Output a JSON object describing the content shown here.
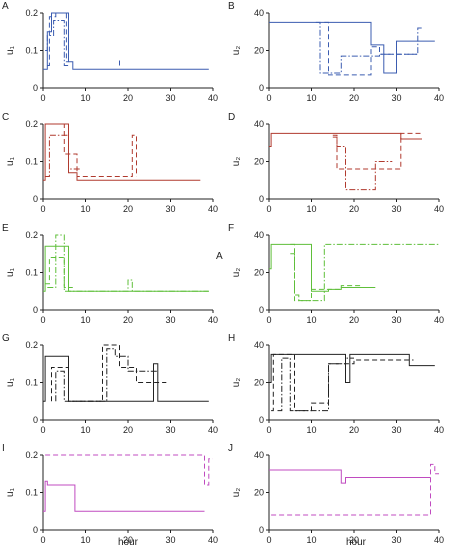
{
  "figure": {
    "x_axis_labels": [
      "hour",
      "hour"
    ],
    "stray_text": "A"
  },
  "styles": {
    "solid": "",
    "dashed": "5,3",
    "dashdot": "6,2,1.5,2"
  },
  "chart_data": [
    {
      "panel": "A",
      "type": "line",
      "color": "#3b5cb0",
      "ylabel": "u₁",
      "xlim": [
        0,
        40
      ],
      "ylim": [
        0,
        0.2
      ],
      "yticks": [
        "0",
        "0.1",
        "0.2"
      ],
      "xticks": [
        "0",
        "10",
        "20",
        "30",
        "40"
      ],
      "series": [
        {
          "style": "solid",
          "x": [
            0,
            1,
            1,
            2,
            2,
            6,
            6,
            7,
            7,
            39
          ],
          "y": [
            0.05,
            0.05,
            0.15,
            0.15,
            0.2,
            0.2,
            0.07,
            0.07,
            0.05,
            0.05
          ]
        },
        {
          "style": "dashed",
          "x": [
            1,
            1.5,
            1.5,
            3,
            3,
            5.5,
            5.5,
            6
          ],
          "y": [
            0.06,
            0.06,
            0.19,
            0.19,
            0.2,
            0.2,
            0.07,
            0.07
          ]
        },
        {
          "style": "dashdot",
          "x": [
            0.5,
            1,
            1,
            2.5,
            2.5,
            5,
            5,
            6
          ],
          "y": [
            0.1,
            0.1,
            0.14,
            0.14,
            0.18,
            0.18,
            0.06,
            0.06
          ]
        },
        {
          "style": "dashed",
          "x": [
            18,
            18
          ],
          "y": [
            0.06,
            0.08
          ]
        }
      ]
    },
    {
      "panel": "B",
      "type": "line",
      "color": "#3b5cb0",
      "ylabel": "u₂",
      "xlim": [
        0,
        40
      ],
      "ylim": [
        0,
        40
      ],
      "yticks": [
        "0",
        "20",
        "40"
      ],
      "xticks": [
        "0",
        "10",
        "20",
        "30",
        "40"
      ],
      "series": [
        {
          "style": "solid",
          "x": [
            0,
            24,
            24,
            27,
            27,
            30,
            30,
            39
          ],
          "y": [
            35,
            35,
            23,
            23,
            8,
            8,
            25,
            25
          ]
        },
        {
          "style": "dashed",
          "x": [
            13,
            13,
            14,
            14,
            24,
            24,
            26,
            26,
            35
          ],
          "y": [
            35,
            35,
            35,
            7,
            7,
            22,
            22,
            18,
            18
          ]
        },
        {
          "style": "dashdot",
          "x": [
            11,
            11,
            12,
            12,
            17,
            17,
            26,
            26,
            35,
            35,
            36
          ],
          "y": [
            35,
            35,
            35,
            8,
            8,
            17,
            17,
            18,
            18,
            32,
            32
          ]
        }
      ]
    },
    {
      "panel": "C",
      "type": "line",
      "color": "#b03a2e",
      "ylabel": "u₁",
      "xlim": [
        0,
        40
      ],
      "ylim": [
        0,
        0.2
      ],
      "yticks": [
        "0",
        "0.1",
        "0.2"
      ],
      "xticks": [
        "0",
        "10",
        "20",
        "30",
        "40"
      ],
      "series": [
        {
          "style": "solid",
          "x": [
            0,
            0.5,
            0.5,
            6,
            6,
            8,
            8,
            37
          ],
          "y": [
            0.05,
            0.05,
            0.2,
            0.2,
            0.07,
            0.07,
            0.05,
            0.05
          ]
        },
        {
          "style": "dashed",
          "x": [
            1,
            5,
            5,
            8,
            8,
            21,
            21,
            22,
            22
          ],
          "y": [
            0.2,
            0.2,
            0.12,
            0.12,
            0.06,
            0.06,
            0.17,
            0.17,
            0.06
          ]
        },
        {
          "style": "dashdot",
          "x": [
            0.5,
            1.5,
            1.5,
            6,
            6,
            9
          ],
          "y": [
            0.06,
            0.06,
            0.17,
            0.17,
            0.08,
            0.08
          ]
        }
      ]
    },
    {
      "panel": "D",
      "type": "line",
      "color": "#b03a2e",
      "ylabel": "u₂",
      "xlim": [
        0,
        40
      ],
      "ylim": [
        0,
        40
      ],
      "yticks": [
        "0",
        "20",
        "40"
      ],
      "xticks": [
        "0",
        "10",
        "20",
        "30",
        "40"
      ],
      "series": [
        {
          "style": "solid",
          "x": [
            0,
            0.5,
            0.5,
            31,
            31,
            36
          ],
          "y": [
            28,
            28,
            35,
            35,
            32,
            32
          ]
        },
        {
          "style": "dashed",
          "x": [
            15,
            15,
            16,
            16,
            31,
            31,
            36
          ],
          "y": [
            34,
            34,
            34,
            16,
            16,
            35,
            35
          ]
        },
        {
          "style": "dashdot",
          "x": [
            15,
            15,
            16,
            16,
            18,
            18,
            25,
            25,
            29
          ],
          "y": [
            33,
            33,
            33,
            28,
            28,
            5,
            5,
            20,
            20
          ]
        }
      ]
    },
    {
      "panel": "E",
      "type": "line",
      "color": "#5fbf3a",
      "ylabel": "u₁",
      "xlim": [
        0,
        40
      ],
      "ylim": [
        0,
        0.2
      ],
      "yticks": [
        "0",
        "0.1",
        "0.2"
      ],
      "xticks": [
        "0",
        "10",
        "20",
        "30",
        "40"
      ],
      "series": [
        {
          "style": "solid",
          "x": [
            0,
            0.5,
            0.5,
            6,
            6,
            39
          ],
          "y": [
            0.05,
            0.05,
            0.17,
            0.17,
            0.05,
            0.05
          ]
        },
        {
          "style": "dashed",
          "x": [
            0.5,
            1.5,
            1.5,
            5,
            5,
            7
          ],
          "y": [
            0.07,
            0.07,
            0.14,
            0.14,
            0.06,
            0.06
          ]
        },
        {
          "style": "dashdot",
          "x": [
            1,
            3,
            3,
            5,
            5,
            20,
            20,
            21,
            21,
            39
          ],
          "y": [
            0.06,
            0.06,
            0.2,
            0.2,
            0.05,
            0.05,
            0.08,
            0.08,
            0.05,
            0.05
          ]
        }
      ]
    },
    {
      "panel": "F",
      "type": "line",
      "color": "#5fbf3a",
      "ylabel": "u₂",
      "xlim": [
        0,
        40
      ],
      "ylim": [
        0,
        40
      ],
      "yticks": [
        "0",
        "20",
        "40"
      ],
      "xticks": [
        "0",
        "10",
        "20",
        "30",
        "40"
      ],
      "series": [
        {
          "style": "solid",
          "x": [
            0,
            0.5,
            0.5,
            10,
            10,
            14,
            14,
            17,
            17,
            25
          ],
          "y": [
            22,
            22,
            35,
            35,
            10,
            10,
            11,
            11,
            12,
            12
          ]
        },
        {
          "style": "dashed",
          "x": [
            5,
            5,
            6,
            6,
            10,
            10,
            17,
            17,
            22
          ],
          "y": [
            35,
            35,
            35,
            5,
            5,
            11,
            11,
            13,
            13
          ]
        },
        {
          "style": "dashdot",
          "x": [
            5,
            6,
            6,
            7,
            7,
            13,
            13,
            40
          ],
          "y": [
            30,
            30,
            8,
            8,
            5,
            5,
            35,
            35
          ]
        }
      ]
    },
    {
      "panel": "G",
      "type": "line",
      "color": "#222222",
      "ylabel": "u₁",
      "xlim": [
        0,
        40
      ],
      "ylim": [
        0,
        0.2
      ],
      "yticks": [
        "0",
        "0.1",
        "0.2"
      ],
      "xticks": [
        "0",
        "10",
        "20",
        "30",
        "40"
      ],
      "series": [
        {
          "style": "solid",
          "x": [
            0,
            0.5,
            0.5,
            6,
            6,
            26,
            26,
            27,
            27,
            39
          ],
          "y": [
            0.05,
            0.05,
            0.17,
            0.17,
            0.05,
            0.05,
            0.15,
            0.15,
            0.05,
            0.05
          ]
        },
        {
          "style": "dashed",
          "x": [
            2,
            2,
            6,
            6,
            14,
            14,
            18,
            18,
            22,
            22,
            29
          ],
          "y": [
            0.05,
            0.14,
            0.14,
            0.05,
            0.05,
            0.2,
            0.2,
            0.14,
            0.14,
            0.1,
            0.1
          ]
        },
        {
          "style": "dashdot",
          "x": [
            3,
            3,
            5,
            5,
            15,
            15,
            17,
            17,
            20,
            20,
            27
          ],
          "y": [
            0.05,
            0.13,
            0.13,
            0.05,
            0.05,
            0.19,
            0.19,
            0.17,
            0.17,
            0.13,
            0.13
          ]
        }
      ]
    },
    {
      "panel": "H",
      "type": "line",
      "color": "#222222",
      "ylabel": "u₂",
      "xlim": [
        0,
        40
      ],
      "ylim": [
        0,
        40
      ],
      "yticks": [
        "0",
        "20",
        "40"
      ],
      "xticks": [
        "0",
        "10",
        "20",
        "30",
        "40"
      ],
      "series": [
        {
          "style": "solid",
          "x": [
            0,
            0.5,
            0.5,
            18,
            18,
            19,
            19,
            33,
            33,
            39
          ],
          "y": [
            20,
            20,
            35,
            35,
            20,
            20,
            35,
            35,
            29,
            29
          ]
        },
        {
          "style": "dashed",
          "x": [
            0.5,
            1,
            1,
            6,
            6,
            10,
            10,
            14,
            14,
            20,
            20,
            34
          ],
          "y": [
            5,
            5,
            35,
            35,
            5,
            5,
            9,
            9,
            30,
            30,
            32,
            32
          ]
        },
        {
          "style": "dashdot",
          "x": [
            2,
            3,
            3,
            5,
            5,
            14,
            14,
            18,
            18,
            20
          ],
          "y": [
            5,
            5,
            33,
            33,
            5,
            5,
            30,
            30,
            33,
            33
          ]
        }
      ]
    },
    {
      "panel": "I",
      "type": "line",
      "color": "#c04bc0",
      "ylabel": "u₁",
      "xlim": [
        0,
        40
      ],
      "ylim": [
        0,
        0.2
      ],
      "yticks": [
        "0",
        "0.1",
        "0.2"
      ],
      "xticks": [
        "0",
        "10",
        "20",
        "30",
        "40"
      ],
      "series": [
        {
          "style": "solid",
          "x": [
            0,
            0.5,
            0.5,
            1,
            1,
            7.5,
            7.5,
            38
          ],
          "y": [
            0.05,
            0.05,
            0.13,
            0.13,
            0.12,
            0.12,
            0.05,
            0.05
          ]
        },
        {
          "style": "dashed",
          "x": [
            0.5,
            38,
            38,
            39,
            39,
            40
          ],
          "y": [
            0.2,
            0.2,
            0.12,
            0.12,
            0.19,
            0.19
          ]
        }
      ]
    },
    {
      "panel": "J",
      "type": "line",
      "color": "#c04bc0",
      "ylabel": "u₂",
      "xlim": [
        0,
        40
      ],
      "ylim": [
        0,
        40
      ],
      "yticks": [
        "0",
        "20",
        "40"
      ],
      "xticks": [
        "0",
        "10",
        "20",
        "30",
        "40"
      ],
      "series": [
        {
          "style": "solid",
          "x": [
            0,
            17,
            17,
            18,
            18,
            38
          ],
          "y": [
            32,
            32,
            25,
            25,
            28,
            28
          ]
        },
        {
          "style": "dashed",
          "x": [
            0.5,
            38,
            38,
            39,
            39,
            40
          ],
          "y": [
            8,
            8,
            35,
            35,
            30,
            30
          ]
        }
      ]
    }
  ]
}
